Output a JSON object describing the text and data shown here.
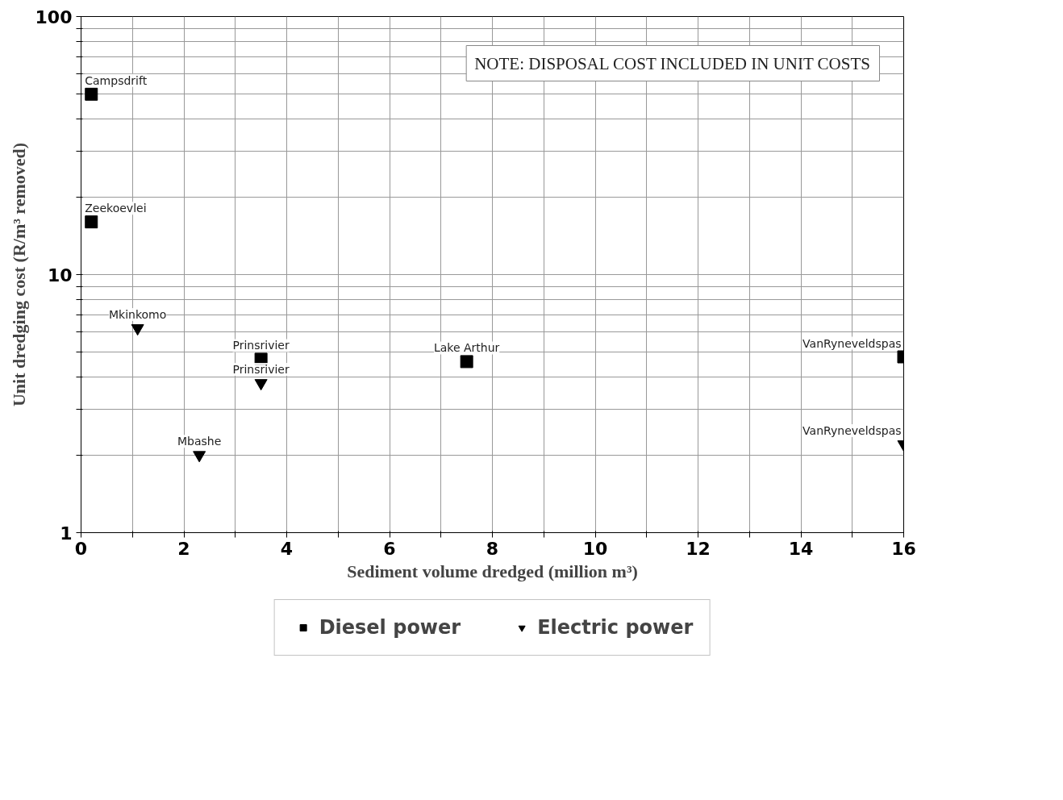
{
  "chart_data": {
    "type": "scatter",
    "xlabel": "Sediment volume dredged (million m³)",
    "ylabel": "Unit dredging cost (R/m³ removed)",
    "series": [
      {
        "name": "Diesel power",
        "color": "#000000",
        "marker": "square",
        "x": [
          0.2,
          0.2,
          3.5,
          7.5,
          16
        ],
        "values": [
          50,
          16,
          4.7,
          4.6,
          4.8
        ]
      },
      {
        "name": "Electric power",
        "color": "#000000",
        "marker": "triangle",
        "x": [
          1.1,
          3.5,
          2.3,
          16
        ],
        "values": [
          6.2,
          3.8,
          2.0,
          2.2
        ]
      }
    ],
    "log": "y",
    "xlim": [
      0,
      16
    ],
    "ylim": [
      1,
      100
    ],
    "xticks": [
      0,
      {
        "value": 1,
        "label": null
      },
      2,
      {
        "value": 3,
        "label": null
      },
      4,
      {
        "value": 5,
        "label": null
      },
      6,
      {
        "value": 7,
        "label": null
      },
      8,
      {
        "value": 9,
        "label": null
      },
      10,
      {
        "value": 11,
        "label": null
      },
      12,
      {
        "value": 13,
        "label": null
      },
      14,
      {
        "value": 15,
        "label": null
      },
      16
    ],
    "yticks": [
      1,
      {
        "value": 2,
        "label": null
      },
      {
        "value": 3,
        "label": null
      },
      {
        "value": 4,
        "label": null
      },
      {
        "value": 5,
        "label": null
      },
      {
        "value": 6,
        "label": null
      },
      {
        "value": 7,
        "label": null
      },
      {
        "value": 8,
        "label": null
      },
      {
        "value": 9,
        "label": null
      },
      10,
      {
        "value": 20,
        "label": null
      },
      {
        "value": 30,
        "label": null
      },
      {
        "value": 40,
        "label": null
      },
      {
        "value": 50,
        "label": null
      },
      {
        "value": 60,
        "label": null
      },
      {
        "value": 70,
        "label": null
      },
      {
        "value": 80,
        "label": null
      },
      {
        "value": 90,
        "label": null
      },
      100
    ],
    "grid": true,
    "legend": "bottom",
    "annotations": [
      {
        "text": "Campsdrift",
        "x": 0.2,
        "y": 50
      },
      {
        "text": "Zeekoevlei",
        "x": 0.2,
        "y": 16
      },
      {
        "text": "Mkinkomo",
        "x": 1.1,
        "y": 6.2
      },
      {
        "text": "Prinsrivier",
        "x": 3.5,
        "y": 4.7
      },
      {
        "text": "Prinsrivier",
        "x": 3.5,
        "y": 3.8
      },
      {
        "text": "Mbashe",
        "x": 2.3,
        "y": 2.0
      },
      {
        "text": "Lake Arthur",
        "x": 7.5,
        "y": 4.6
      },
      {
        "text": "VanRyneveldspas",
        "x": 16,
        "y": 4.8
      },
      {
        "text": "VanRyneveldspas",
        "x": 16,
        "y": 2.2
      },
      "NOTE: DISPOSAL COST INCLUDED IN UNIT COSTS"
    ]
  }
}
